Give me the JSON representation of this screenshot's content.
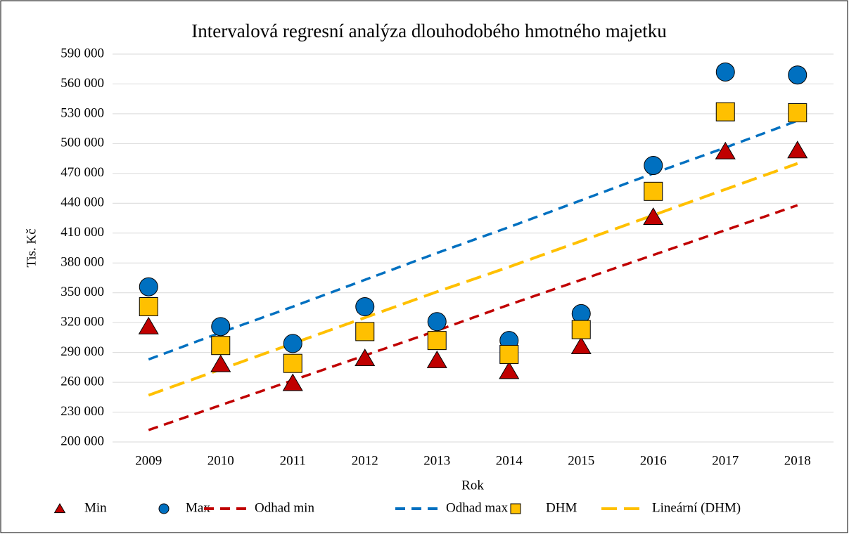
{
  "chart_data": {
    "type": "scatter",
    "title": "Intervalová regresní analýza dlouhodobého hmotného majetku",
    "ylabel": "Tis. Kč",
    "xlabel": "Rok",
    "categories": [
      "2009",
      "2010",
      "2011",
      "2012",
      "2013",
      "2014",
      "2015",
      "2016",
      "2017",
      "2018"
    ],
    "ylim": [
      200000,
      590000
    ],
    "yticks": [
      {
        "value": 200000,
        "label": "200 000"
      },
      {
        "value": 230000,
        "label": "230 000"
      },
      {
        "value": 260000,
        "label": "260 000"
      },
      {
        "value": 290000,
        "label": "290 000"
      },
      {
        "value": 320000,
        "label": "320 000"
      },
      {
        "value": 350000,
        "label": "350 000"
      },
      {
        "value": 380000,
        "label": "380 000"
      },
      {
        "value": 410000,
        "label": "410 000"
      },
      {
        "value": 440000,
        "label": "440 000"
      },
      {
        "value": 470000,
        "label": "470 000"
      },
      {
        "value": 500000,
        "label": "500 000"
      },
      {
        "value": 530000,
        "label": "530 000"
      },
      {
        "value": 560000,
        "label": "560 000"
      },
      {
        "value": 590000,
        "label": "590 000"
      }
    ],
    "grid": true,
    "legend": "bottom",
    "series": [
      {
        "name": "Min",
        "color": "#c00000",
        "marker": "triangle",
        "values": [
          316000,
          278000,
          259000,
          284000,
          282000,
          271000,
          296000,
          426000,
          492000,
          493000
        ]
      },
      {
        "name": "Max",
        "color": "#0070c0",
        "marker": "circle",
        "values": [
          356000,
          316000,
          299000,
          336000,
          321000,
          302000,
          329000,
          478000,
          572000,
          569000
        ]
      },
      {
        "name": "Odhad min",
        "color": "#c00000",
        "marker": "dashed-line",
        "values": [
          212000,
          237000,
          262000,
          287000,
          312000,
          338000,
          363000,
          388000,
          413000,
          438000
        ]
      },
      {
        "name": "Odhad max",
        "color": "#0070c0",
        "marker": "dashed-line",
        "values": [
          283000,
          310000,
          336000,
          363000,
          390000,
          416000,
          443000,
          470000,
          496000,
          523000
        ]
      },
      {
        "name": "DHM",
        "color": "#ffc000",
        "marker": "square",
        "values": [
          336000,
          297000,
          279000,
          311000,
          302000,
          288000,
          313000,
          452000,
          532000,
          531000
        ]
      },
      {
        "name": "Lineární (DHM)",
        "color": "#ffc000",
        "marker": "long-dashed-line",
        "values": [
          247000,
          273000,
          299000,
          325000,
          351000,
          376000,
          402000,
          428000,
          454000,
          480000
        ]
      }
    ]
  }
}
